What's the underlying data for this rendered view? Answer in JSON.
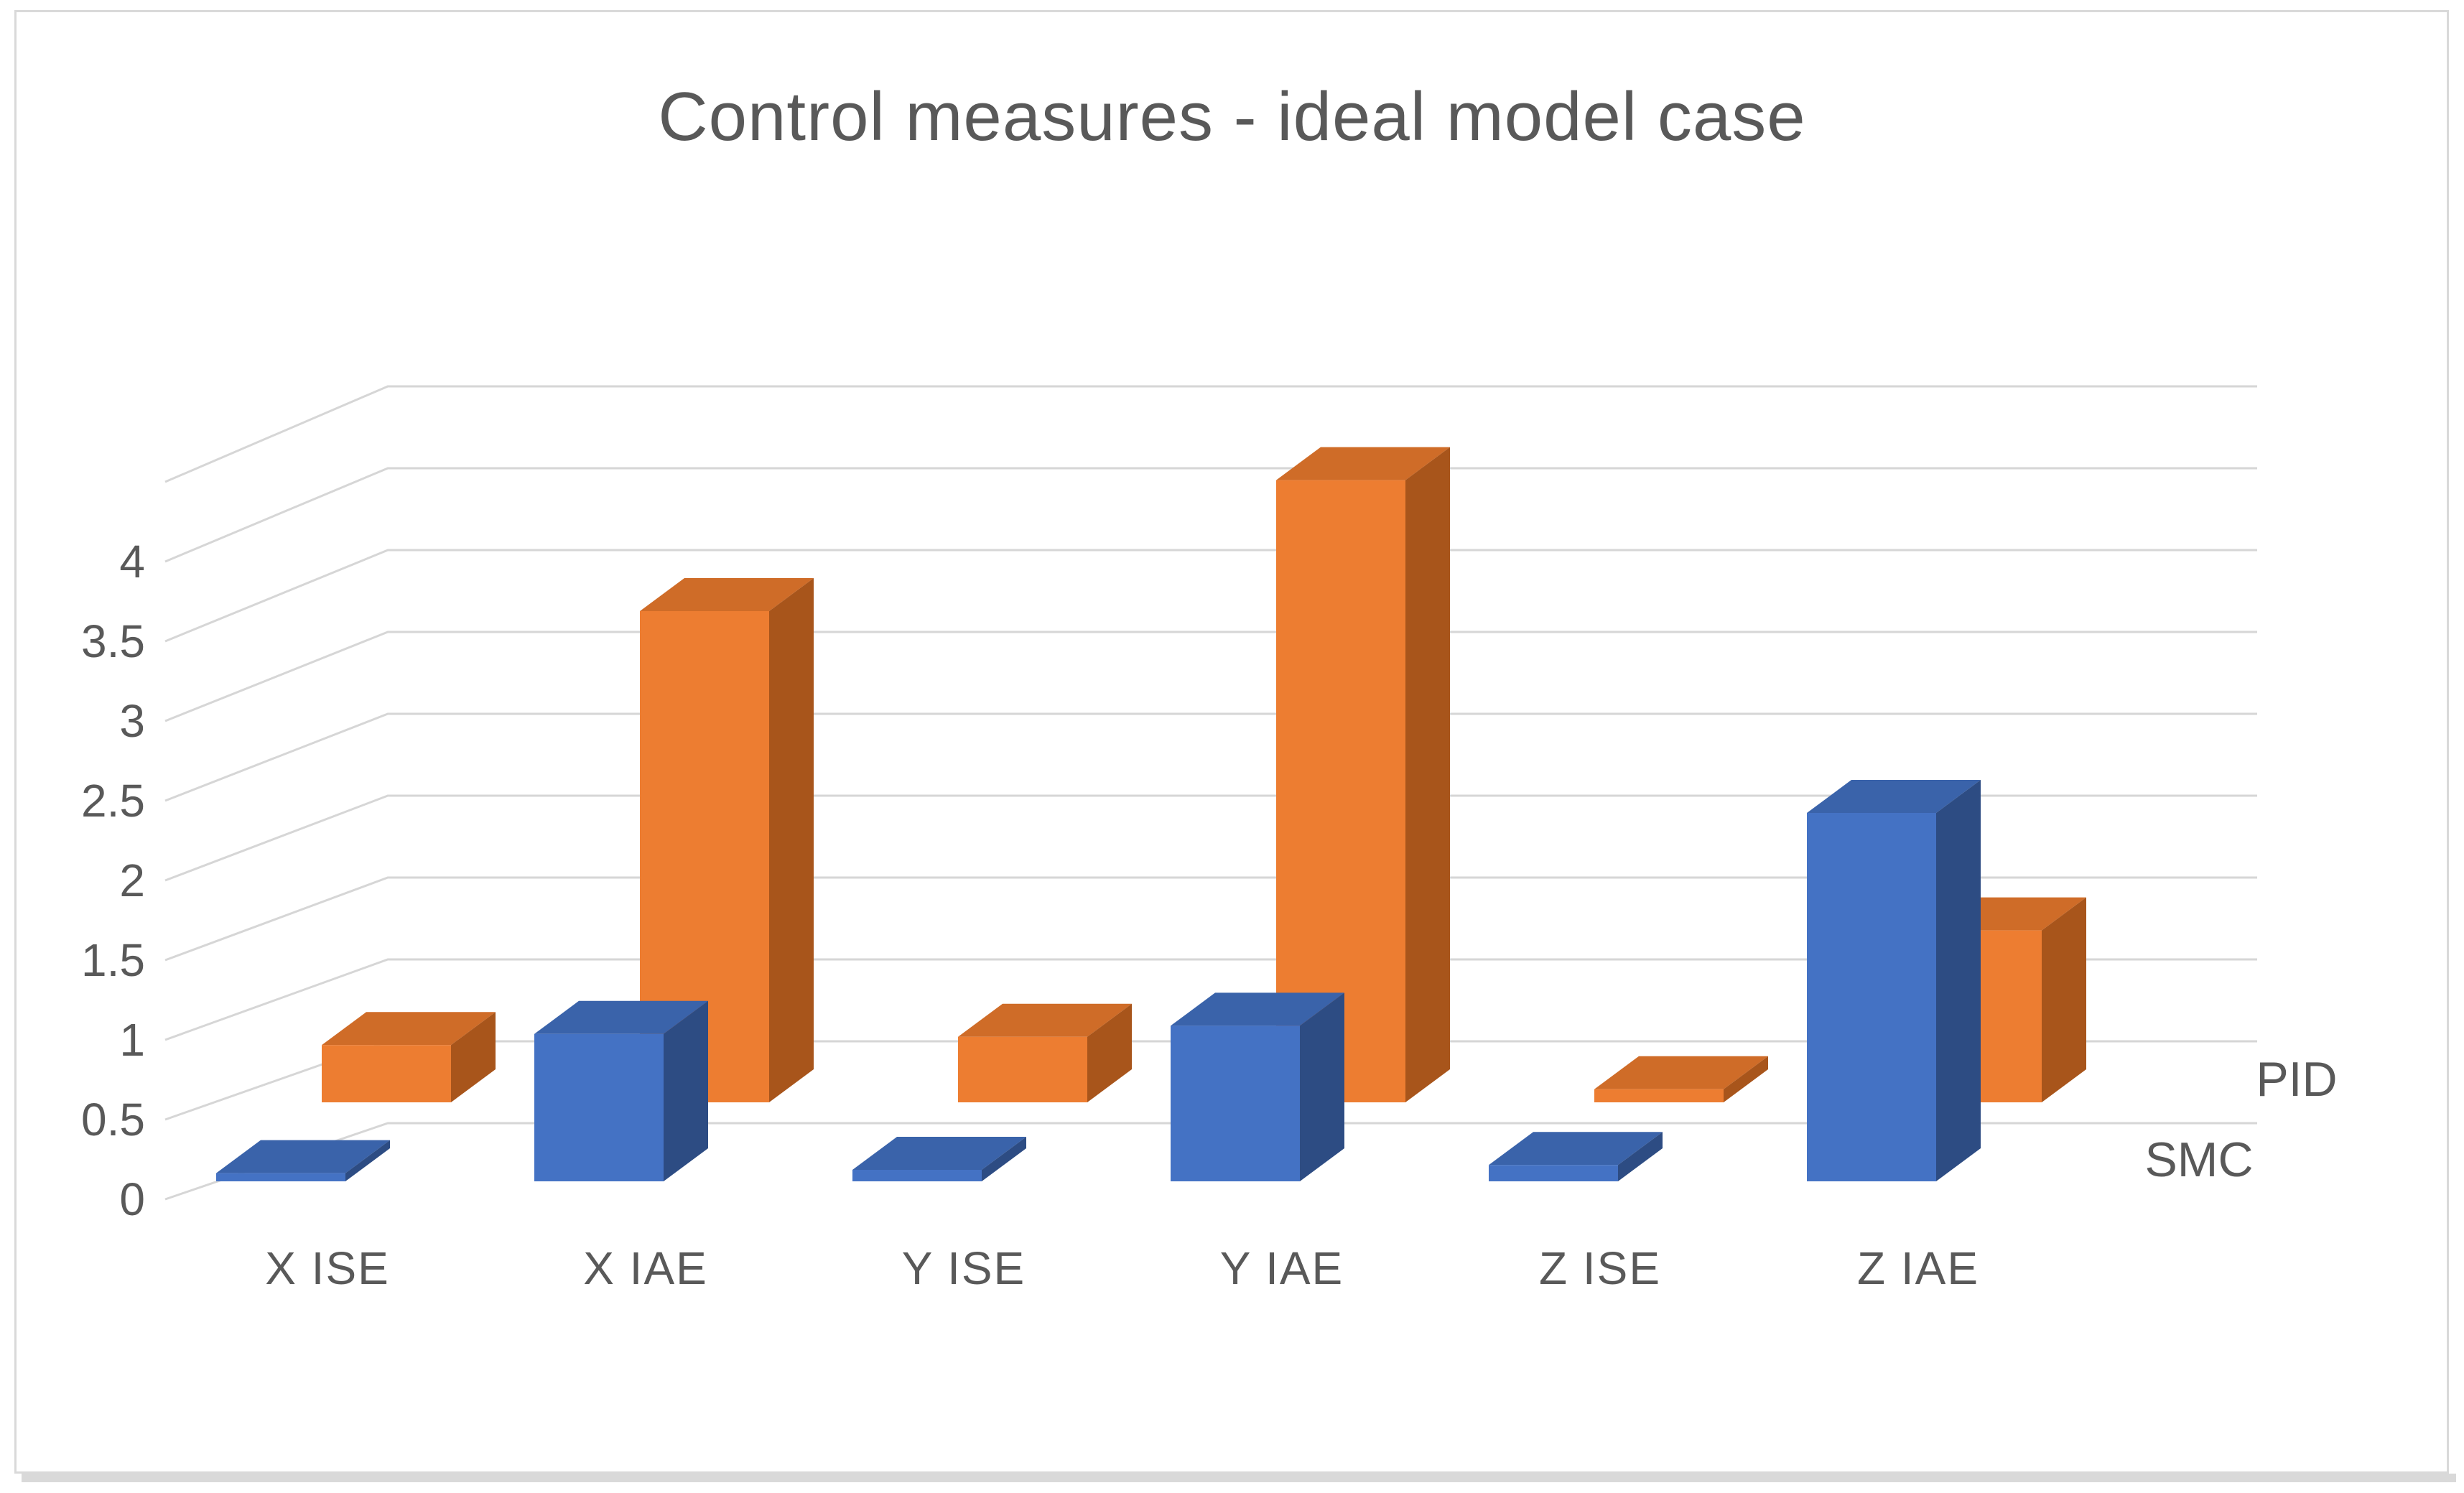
{
  "title": "Control measures - ideal model case",
  "chart_data": {
    "type": "bar",
    "subtype": "3d-column",
    "title": "Control measures - ideal model case",
    "xlabel": "",
    "ylabel": "",
    "categories": [
      "X ISE",
      "X IAE",
      "Y ISE",
      "Y IAE",
      "Z ISE",
      "Z IAE"
    ],
    "series": [
      {
        "name": "SMC",
        "row": "front",
        "values": [
          0.05,
          0.9,
          0.07,
          0.95,
          0.1,
          2.25
        ],
        "faces": {
          "front": "#4472c4",
          "top": "#3a63aa",
          "side": "#2d4c83"
        }
      },
      {
        "name": "PID",
        "row": "back",
        "values": [
          0.35,
          3.0,
          0.4,
          3.8,
          0.08,
          1.05
        ],
        "faces": {
          "front": "#ed7d31",
          "top": "#cf6c28",
          "side": "#a8551b"
        }
      }
    ],
    "ylim": [
      0,
      4.5
    ],
    "ytick_step": 0.5,
    "ytick_labels": [
      "0",
      "0.5",
      "1",
      "1.5",
      "2",
      "2.5",
      "3",
      "3.5",
      "4"
    ],
    "grid": true,
    "legend_position": "depth-axis-right",
    "depth_axis_labels": [
      "PID",
      "SMC"
    ]
  },
  "colors": {
    "background": "#ffffff",
    "frame_border": "#d9d9d9",
    "gridline": "#d6d6d6",
    "text": "#595959"
  }
}
